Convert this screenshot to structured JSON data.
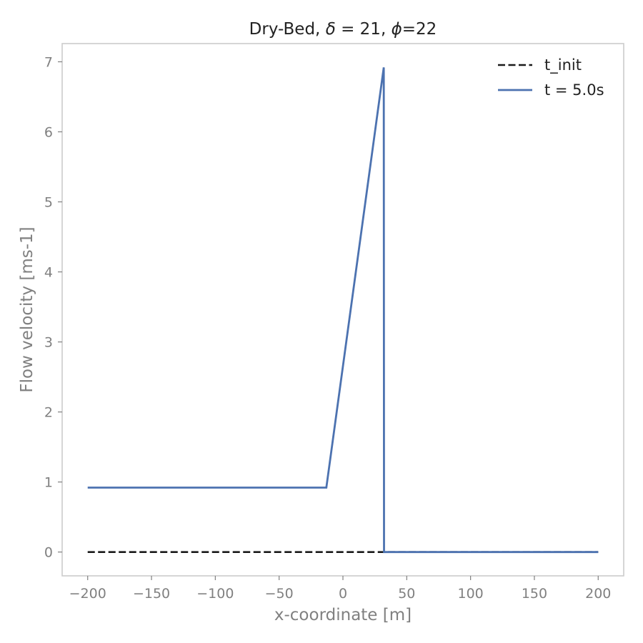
{
  "chart_data": {
    "type": "line",
    "title_prefix": "Dry-Bed, ",
    "title_delta_symbol": "δ",
    "title_delta_value": "21",
    "title_phi_symbol": "ϕ",
    "title_phi_value": "22",
    "xlabel": "x-coordinate [m]",
    "ylabel": "Flow velocity [ms-1]",
    "xlim": [
      -220,
      220
    ],
    "ylim": [
      -0.34,
      7.26
    ],
    "xticks": [
      -200,
      -150,
      -100,
      -50,
      0,
      50,
      100,
      150,
      200
    ],
    "xtick_labels": [
      "−200",
      "−150",
      "−100",
      "−50",
      "0",
      "50",
      "100",
      "150",
      "200"
    ],
    "yticks": [
      0,
      1,
      2,
      3,
      4,
      5,
      6,
      7
    ],
    "ytick_labels": [
      "0",
      "1",
      "2",
      "3",
      "4",
      "5",
      "6",
      "7"
    ],
    "grid": false,
    "legend_position": "top-right",
    "series": [
      {
        "name": "t_init",
        "style": "dashed",
        "color": "#1a1a1a",
        "x": [
          -200,
          200
        ],
        "y": [
          0,
          0
        ]
      },
      {
        "name": "t = 5.0s",
        "style": "solid",
        "color": "#4c72b0",
        "x": [
          -200,
          -13,
          32,
          32.2,
          200
        ],
        "y": [
          0.92,
          0.92,
          6.92,
          0.0,
          0.0
        ]
      }
    ]
  }
}
